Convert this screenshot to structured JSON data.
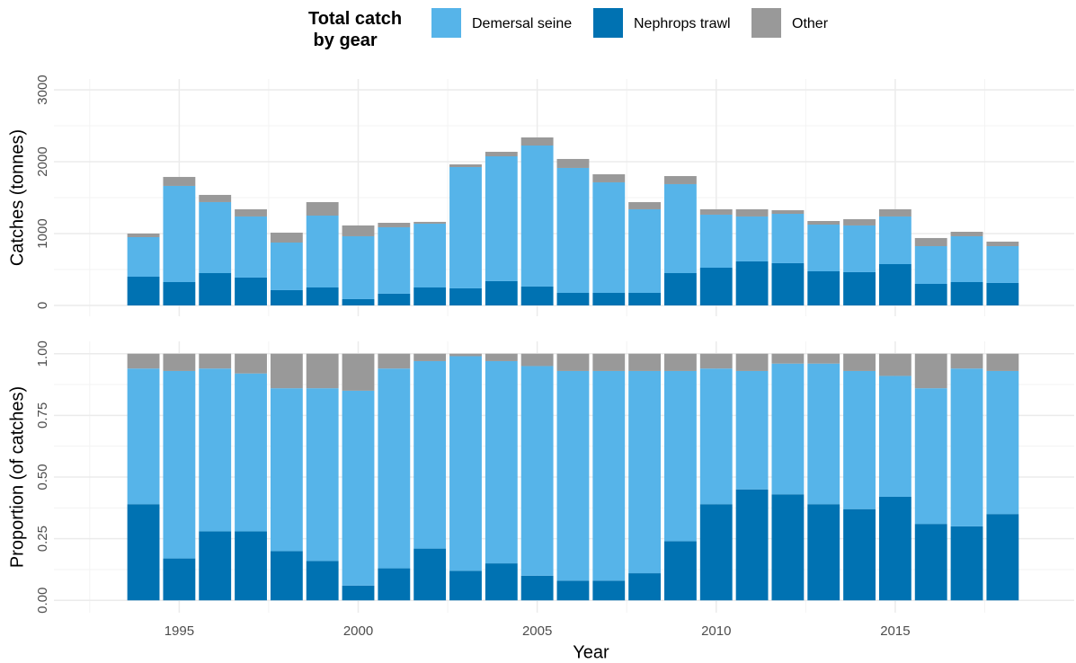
{
  "chart_data": [
    {
      "type": "stacked_bar",
      "y_label": "Catches (tonnes)",
      "legend_title": "Total catch\n by gear",
      "legend": "top",
      "x": [
        1994,
        1995,
        1996,
        1997,
        1998,
        1999,
        2000,
        2001,
        2002,
        2003,
        2004,
        2005,
        2006,
        2007,
        2008,
        2009,
        2010,
        2011,
        2012,
        2013,
        2014,
        2015,
        2016,
        2017,
        2018
      ],
      "series": [
        {
          "name": "Demersal seine",
          "color": "#56b4e9",
          "values": [
            550,
            1338,
            988,
            850,
            662,
            1000,
            875,
            925,
            888,
            1687,
            1737,
            1962,
            1738,
            1538,
            1163,
            1238,
            738,
            625,
            687,
            650,
            650,
            663,
            525,
            638,
            512
          ]
        },
        {
          "name": "Nephrops trawl",
          "color": "#0072b2",
          "values": [
            400,
            325,
            450,
            388,
            213,
            250,
            88,
            163,
            250,
            238,
            338,
            263,
            175,
            175,
            175,
            450,
            525,
            613,
            588,
            475,
            463,
            575,
            300,
            325,
            313
          ]
        },
        {
          "name": "Other",
          "color": "#999999",
          "values": [
            50,
            125,
            100,
            100,
            138,
            188,
            150,
            62,
            25,
            38,
            63,
            113,
            125,
            112,
            100,
            112,
            75,
            100,
            50,
            50,
            87,
            100,
            113,
            62,
            63
          ]
        }
      ],
      "ylim": [
        -150,
        3150
      ],
      "yticks": [
        0,
        1000,
        2000,
        3000
      ],
      "grid": true
    },
    {
      "type": "stacked_bar",
      "y_label": "Proportion (of catches)",
      "x_label": "Year",
      "x": [
        1994,
        1995,
        1996,
        1997,
        1998,
        1999,
        2000,
        2001,
        2002,
        2003,
        2004,
        2005,
        2006,
        2007,
        2008,
        2009,
        2010,
        2011,
        2012,
        2013,
        2014,
        2015,
        2016,
        2017,
        2018
      ],
      "series": [
        {
          "color": "#56b4e9",
          "values": [
            0.55,
            0.76,
            0.66,
            0.64,
            0.66,
            0.7,
            0.79,
            0.81,
            0.76,
            0.87,
            0.82,
            0.85,
            0.85,
            0.85,
            0.82,
            0.69,
            0.55,
            0.48,
            0.53,
            0.57,
            0.56,
            0.49,
            0.55,
            0.64,
            0.58
          ]
        },
        {
          "color": "#0072b2",
          "values": [
            0.39,
            0.17,
            0.28,
            0.28,
            0.2,
            0.16,
            0.06,
            0.13,
            0.21,
            0.12,
            0.15,
            0.1,
            0.08,
            0.08,
            0.11,
            0.24,
            0.39,
            0.45,
            0.43,
            0.39,
            0.37,
            0.42,
            0.31,
            0.3,
            0.35
          ]
        },
        {
          "color": "#999999",
          "values": [
            0.06,
            0.07,
            0.06,
            0.08,
            0.14,
            0.14,
            0.15,
            0.06,
            0.03,
            0.01,
            0.03,
            0.05,
            0.07,
            0.07,
            0.07,
            0.07,
            0.06,
            0.07,
            0.04,
            0.04,
            0.07,
            0.09,
            0.14,
            0.06,
            0.07
          ]
        }
      ],
      "xlim": [
        1991.5,
        2020
      ],
      "xticks": [
        1995,
        2000,
        2005,
        2010,
        2015
      ],
      "ylim": [
        -0.05,
        1.05
      ],
      "yticks": [
        {
          "value": 0,
          "label": "0.00"
        },
        {
          "value": 0.25,
          "label": "0.25"
        },
        {
          "value": 0.5,
          "label": "0.50"
        },
        {
          "value": 0.75,
          "label": "0.75"
        },
        {
          "value": 1,
          "label": "1.00"
        }
      ],
      "grid": true
    }
  ]
}
